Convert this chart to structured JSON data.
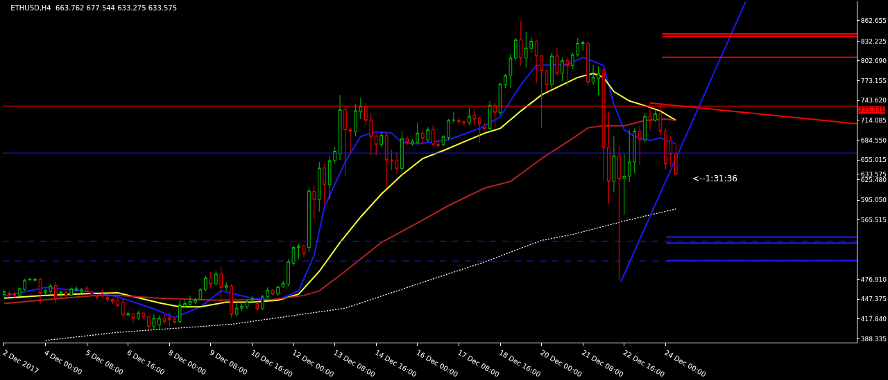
{
  "chart_data": {
    "type": "candlestick",
    "title": "ETHUSD,H4  663.762 677.544 633.275 633.575",
    "x": [
      "2017-12-02T16:00",
      "2017-12-02T20:00",
      "2017-12-03T00:00",
      "2017-12-03T04:00",
      "2017-12-03T08:00",
      "2017-12-03T12:00",
      "2017-12-03T16:00",
      "2017-12-03T20:00",
      "2017-12-04T00:00",
      "2017-12-04T04:00",
      "2017-12-04T08:00",
      "2017-12-04T12:00",
      "2017-12-04T16:00",
      "2017-12-04T20:00",
      "2017-12-05T00:00",
      "2017-12-05T04:00",
      "2017-12-05T08:00",
      "2017-12-05T12:00",
      "2017-12-05T16:00",
      "2017-12-05T20:00",
      "2017-12-06T00:00",
      "2017-12-06T04:00",
      "2017-12-06T08:00",
      "2017-12-06T12:00",
      "2017-12-06T16:00",
      "2017-12-06T20:00",
      "2017-12-07T00:00",
      "2017-12-07T04:00",
      "2017-12-07T08:00",
      "2017-12-07T12:00",
      "2017-12-07T16:00",
      "2017-12-07T20:00",
      "2017-12-08T00:00",
      "2017-12-08T04:00",
      "2017-12-08T08:00",
      "2017-12-08T12:00",
      "2017-12-08T16:00",
      "2017-12-08T20:00",
      "2017-12-09T00:00",
      "2017-12-09T04:00",
      "2017-12-09T08:00",
      "2017-12-09T12:00",
      "2017-12-09T16:00",
      "2017-12-09T20:00",
      "2017-12-10T00:00",
      "2017-12-10T04:00",
      "2017-12-10T08:00",
      "2017-12-10T12:00",
      "2017-12-10T16:00",
      "2017-12-10T20:00",
      "2017-12-11T00:00",
      "2017-12-11T04:00",
      "2017-12-11T08:00",
      "2017-12-11T12:00",
      "2017-12-11T16:00",
      "2017-12-11T20:00",
      "2017-12-12T00:00",
      "2017-12-12T04:00",
      "2017-12-12T08:00",
      "2017-12-12T12:00",
      "2017-12-12T16:00",
      "2017-12-12T20:00",
      "2017-12-13T00:00",
      "2017-12-13T04:00",
      "2017-12-13T08:00",
      "2017-12-13T12:00",
      "2017-12-13T16:00",
      "2017-12-13T20:00",
      "2017-12-14T00:00",
      "2017-12-14T04:00",
      "2017-12-14T08:00",
      "2017-12-14T12:00",
      "2017-12-14T16:00",
      "2017-12-14T20:00",
      "2017-12-15T00:00",
      "2017-12-15T04:00",
      "2017-12-15T08:00",
      "2017-12-15T12:00",
      "2017-12-15T16:00",
      "2017-12-15T20:00",
      "2017-12-16T00:00",
      "2017-12-16T04:00",
      "2017-12-16T08:00",
      "2017-12-16T12:00",
      "2017-12-16T16:00",
      "2017-12-16T20:00",
      "2017-12-17T00:00",
      "2017-12-17T04:00",
      "2017-12-17T08:00",
      "2017-12-17T12:00",
      "2017-12-17T16:00",
      "2017-12-17T20:00",
      "2017-12-18T00:00",
      "2017-12-18T04:00",
      "2017-12-18T08:00",
      "2017-12-18T12:00",
      "2017-12-18T16:00",
      "2017-12-18T20:00",
      "2017-12-19T00:00",
      "2017-12-19T04:00",
      "2017-12-19T08:00",
      "2017-12-19T12:00",
      "2017-12-19T16:00",
      "2017-12-19T20:00",
      "2017-12-20T00:00",
      "2017-12-20T04:00",
      "2017-12-20T08:00",
      "2017-12-20T12:00",
      "2017-12-20T16:00",
      "2017-12-20T20:00",
      "2017-12-21T00:00",
      "2017-12-21T04:00",
      "2017-12-21T08:00",
      "2017-12-21T12:00",
      "2017-12-21T16:00",
      "2017-12-21T20:00",
      "2017-12-22T00:00",
      "2017-12-22T04:00",
      "2017-12-22T08:00",
      "2017-12-22T12:00",
      "2017-12-22T16:00",
      "2017-12-22T20:00",
      "2017-12-23T00:00",
      "2017-12-23T04:00",
      "2017-12-23T08:00",
      "2017-12-23T12:00",
      "2017-12-23T16:00",
      "2017-12-23T20:00",
      "2017-12-24T00:00",
      "2017-12-24T04:00",
      "2017-12-24T08:00"
    ],
    "ohlc": [
      [
        454.5,
        461.2,
        451.6,
        458.3
      ],
      [
        456.4,
        460.3,
        452.6,
        454.5
      ],
      [
        455.4,
        459,
        449,
        453.5
      ],
      [
        453.5,
        465,
        452,
        463.2
      ],
      [
        462,
        478,
        460,
        475.6
      ],
      [
        476,
        480,
        475,
        477
      ],
      [
        475.5,
        479,
        474,
        477.5
      ],
      [
        477.5,
        479.4,
        439.2,
        456.4
      ],
      [
        457.4,
        462,
        455,
        460.3
      ],
      [
        458.3,
        470,
        456,
        467
      ],
      [
        468,
        473,
        443,
        448
      ],
      [
        456,
        460,
        450,
        458.3
      ],
      [
        457.4,
        460,
        450,
        452.6
      ],
      [
        453.5,
        465,
        452,
        463
      ],
      [
        461,
        467,
        459,
        463
      ],
      [
        458,
        464,
        456,
        462
      ],
      [
        464,
        467,
        456,
        459
      ],
      [
        458,
        460,
        452,
        455
      ],
      [
        453,
        455,
        446,
        450
      ],
      [
        455,
        461,
        450,
        452
      ],
      [
        450.5,
        453,
        443,
        447
      ],
      [
        447,
        449,
        440,
        444
      ],
      [
        446,
        449,
        436,
        438
      ],
      [
        443,
        448,
        421,
        424
      ],
      [
        424,
        430,
        422,
        426
      ],
      [
        426,
        427,
        412,
        419
      ],
      [
        419,
        430,
        417,
        427
      ],
      [
        427,
        429,
        418,
        421
      ],
      [
        421,
        423,
        403,
        406.5
      ],
      [
        406.5,
        425,
        403,
        419
      ],
      [
        409,
        423,
        402,
        419
      ],
      [
        419,
        425,
        410,
        414
      ],
      [
        420,
        427,
        406,
        417
      ],
      [
        417,
        420,
        411,
        413
      ],
      [
        414,
        446,
        412,
        439
      ],
      [
        437,
        447,
        435,
        441
      ],
      [
        440,
        452,
        438,
        444
      ],
      [
        443,
        449,
        440,
        446
      ],
      [
        447,
        464,
        446,
        462
      ],
      [
        462,
        482,
        459,
        479
      ],
      [
        479,
        488,
        465,
        470
      ],
      [
        470,
        490,
        468,
        485
      ],
      [
        485,
        495.7,
        441,
        465
      ],
      [
        465,
        473,
        460,
        468
      ],
      [
        467,
        470,
        420,
        425
      ],
      [
        425,
        441,
        422,
        434
      ],
      [
        434,
        443,
        430,
        437
      ],
      [
        436,
        447,
        433,
        444
      ],
      [
        446,
        452,
        443,
        448
      ],
      [
        441,
        446,
        430,
        433
      ],
      [
        433,
        454,
        431,
        451
      ],
      [
        451,
        465,
        448,
        461
      ],
      [
        461,
        463,
        452,
        455
      ],
      [
        455,
        467,
        452,
        466
      ],
      [
        466,
        475,
        464,
        471
      ],
      [
        470,
        507,
        467,
        503.4
      ],
      [
        501,
        527,
        497,
        524.5
      ],
      [
        524.5,
        530,
        508,
        527
      ],
      [
        527,
        529,
        510,
        515
      ],
      [
        524.5,
        614,
        518,
        608.8
      ],
      [
        608,
        617,
        567.6,
        596
      ],
      [
        596,
        652,
        578,
        643
      ],
      [
        643,
        649,
        590,
        618
      ],
      [
        618,
        661,
        596,
        654
      ],
      [
        654,
        675,
        650,
        668
      ],
      [
        664,
        752,
        655,
        730
      ],
      [
        730,
        735,
        630,
        700
      ],
      [
        700,
        703,
        664,
        698
      ],
      [
        697,
        738,
        690,
        728.5
      ],
      [
        727,
        747.7,
        716,
        735
      ],
      [
        735,
        740,
        706,
        714
      ],
      [
        714,
        725,
        661.4,
        690
      ],
      [
        690,
        694,
        662,
        678
      ],
      [
        678,
        697,
        675,
        692
      ],
      [
        692,
        697,
        613,
        655
      ],
      [
        655,
        670,
        640,
        654
      ],
      [
        654,
        666,
        634,
        642
      ],
      [
        642,
        698,
        638,
        687
      ],
      [
        687,
        690,
        677,
        681
      ],
      [
        679,
        686,
        676,
        683
      ],
      [
        681,
        711,
        679,
        695
      ],
      [
        695,
        698,
        678,
        687
      ],
      [
        685,
        704,
        681,
        700
      ],
      [
        700,
        707,
        676,
        678
      ],
      [
        678,
        686,
        673,
        676.5
      ],
      [
        678,
        692,
        675,
        690
      ],
      [
        688.6,
        716,
        685,
        714
      ],
      [
        714,
        727,
        710,
        714.6
      ],
      [
        714,
        718,
        708,
        712
      ],
      [
        712,
        714,
        706,
        710
      ],
      [
        711,
        733,
        707,
        720
      ],
      [
        722,
        731,
        706,
        716
      ],
      [
        717,
        719,
        680.6,
        709
      ],
      [
        707,
        710,
        700,
        702
      ],
      [
        702,
        742.9,
        700,
        736
      ],
      [
        736,
        740,
        704,
        726
      ],
      [
        726,
        770,
        722,
        768
      ],
      [
        767,
        783,
        762,
        781
      ],
      [
        781,
        812.8,
        762,
        807
      ],
      [
        807,
        836.8,
        804,
        834
      ],
      [
        834,
        862.7,
        795.6,
        807
      ],
      [
        807,
        846,
        793,
        822
      ],
      [
        821,
        838,
        815,
        832
      ],
      [
        832,
        834,
        769.7,
        810
      ],
      [
        810,
        812,
        702,
        788
      ],
      [
        788,
        790,
        757,
        767
      ],
      [
        767,
        815,
        762,
        810
      ],
      [
        810,
        822,
        780,
        784
      ],
      [
        784,
        808,
        772,
        803
      ],
      [
        803,
        808,
        765,
        796
      ],
      [
        796,
        815,
        790,
        812
      ],
      [
        812,
        836.8,
        809,
        829
      ],
      [
        828,
        833,
        818,
        830
      ],
      [
        829,
        832,
        766.8,
        771
      ],
      [
        771,
        797,
        767,
        778
      ],
      [
        776,
        795,
        752,
        784
      ],
      [
        789,
        790.8,
        626,
        674
      ],
      [
        674,
        727,
        589.6,
        623
      ],
      [
        623,
        690,
        606.8,
        661
      ],
      [
        661,
        677,
        476.5,
        627
      ],
      [
        627,
        665,
        573.3,
        631
      ],
      [
        631,
        699.8,
        622,
        652
      ],
      [
        652,
        702,
        635,
        698
      ],
      [
        698,
        705,
        648,
        685
      ],
      [
        685,
        725,
        680.6,
        720
      ],
      [
        720,
        738,
        700,
        714
      ],
      [
        714,
        729,
        712,
        724
      ],
      [
        724,
        738,
        692,
        698
      ],
      [
        698,
        702,
        640.4,
        649
      ],
      [
        683.5,
        690,
        645,
        663.8
      ],
      [
        663.762,
        677.544,
        633.275,
        633.575
      ]
    ],
    "series": [
      {
        "type": "line",
        "color": "#1a1aff",
        "x": [
          "2017-12-02T16:00",
          "2017-12-04T00:00",
          "2017-12-05T08:00",
          "2017-12-06T08:00",
          "2017-12-07T12:00",
          "2017-12-08T04:00",
          "2017-12-09T00:00",
          "2017-12-09T16:00",
          "2017-12-10T16:00",
          "2017-12-11T12:00",
          "2017-12-12T04:00",
          "2017-12-12T16:00",
          "2017-12-13T00:00",
          "2017-12-13T16:00",
          "2017-12-14T04:00",
          "2017-12-14T16:00",
          "2017-12-15T04:00",
          "2017-12-15T12:00",
          "2017-12-16T00:00",
          "2017-12-16T12:00",
          "2017-12-17T00:00",
          "2017-12-18T00:00",
          "2017-12-18T16:00",
          "2017-12-19T08:00",
          "2017-12-19T20:00",
          "2017-12-20T08:00",
          "2017-12-20T20:00",
          "2017-12-21T08:00",
          "2017-12-22T00:00",
          "2017-12-22T08:00",
          "2017-12-22T16:00",
          "2017-12-23T00:00",
          "2017-12-23T12:00",
          "2017-12-23T20:00",
          "2017-12-24T08:00"
        ],
        "values": [
          452,
          465,
          459,
          451,
          433,
          420,
          436,
          460,
          449,
          446,
          460,
          513,
          585,
          652,
          690,
          697,
          695,
          681,
          679,
          682,
          685,
          702,
          719,
          767,
          796,
          797,
          797,
          808,
          796,
          738,
          700,
          690,
          684,
          688,
          679
        ]
      },
      {
        "type": "line",
        "color": "#ffff33",
        "x": [
          "2017-12-02T16:00",
          "2017-12-04T00:00",
          "2017-12-05T12:00",
          "2017-12-06T08:00",
          "2017-12-07T16:00",
          "2017-12-08T08:00",
          "2017-12-09T00:00",
          "2017-12-09T20:00",
          "2017-12-10T16:00",
          "2017-12-11T12:00",
          "2017-12-12T04:00",
          "2017-12-12T20:00",
          "2017-12-13T12:00",
          "2017-12-14T04:00",
          "2017-12-14T20:00",
          "2017-12-15T12:00",
          "2017-12-16T04:00",
          "2017-12-16T20:00",
          "2017-12-17T12:00",
          "2017-12-18T04:00",
          "2017-12-18T16:00",
          "2017-12-19T08:00",
          "2017-12-20T00:00",
          "2017-12-20T16:00",
          "2017-12-21T04:00",
          "2017-12-21T16:00",
          "2017-12-22T00:00",
          "2017-12-22T08:00",
          "2017-12-22T20:00",
          "2017-12-23T08:00",
          "2017-12-23T20:00",
          "2017-12-24T08:00"
        ],
        "values": [
          449,
          453,
          456,
          457,
          442,
          436,
          436,
          443,
          443,
          446,
          455,
          489,
          532,
          570,
          604,
          633,
          657,
          669,
          682,
          695,
          702,
          728,
          752,
          767,
          778,
          784,
          778,
          757,
          743,
          736,
          728,
          714
        ]
      },
      {
        "type": "line",
        "color": "#b22222",
        "x": [
          "2017-12-02T16:00",
          "2017-12-04T08:00",
          "2017-12-05T16:00",
          "2017-12-06T08:00",
          "2017-12-07T16:00",
          "2017-12-09T12:00",
          "2017-12-11T08:00",
          "2017-12-12T08:00",
          "2017-12-12T20:00",
          "2017-12-13T16:00",
          "2017-12-14T20:00",
          "2017-12-16T00:00",
          "2017-12-17T00:00",
          "2017-12-18T04:00",
          "2017-12-19T00:00",
          "2017-12-20T00:00",
          "2017-12-21T00:00",
          "2017-12-21T12:00",
          "2017-12-22T00:00",
          "2017-12-22T16:00",
          "2017-12-23T08:00",
          "2017-12-24T00:00",
          "2017-12-24T08:00"
        ],
        "values": [
          441,
          448,
          453,
          453,
          449,
          446,
          447,
          453,
          460,
          489,
          532,
          561,
          587,
          613,
          623,
          657,
          687,
          703,
          706,
          706,
          714,
          716,
          714
        ]
      },
      {
        "type": "line",
        "color": "#ffffff",
        "line_style": "dotted",
        "x": [
          "2017-12-04T00:00",
          "2017-12-06T08:00",
          "2017-12-10T00:00",
          "2017-12-13T16:00",
          "2017-12-16T00:00",
          "2017-12-18T04:00",
          "2017-12-20T00:00",
          "2017-12-21T00:00",
          "2017-12-22T16:00",
          "2017-12-24T08:00"
        ],
        "values": [
          386,
          398,
          410,
          434,
          470,
          503,
          535,
          544,
          564,
          582
        ]
      },
      {
        "type": "line",
        "color": "#ff0000",
        "x": [
          "2017-12-23T12:00",
          "2017-12-30T04:00"
        ],
        "values": [
          740,
          709
        ]
      },
      {
        "type": "line",
        "color": "#1a1aff",
        "x": [
          "2017-12-22T13:20",
          "2017-12-26T14:00"
        ],
        "values": [
          473,
          891
        ]
      },
      {
        "type": "line",
        "color": "#ff0000",
        "x": [
          "2017-12-23T21:20",
          "2017-12-30T04:00"
        ],
        "values": [
          843,
          843
        ]
      },
      {
        "type": "line",
        "color": "#ff0000",
        "x": [
          "2017-12-23T21:20",
          "2017-12-30T04:00"
        ],
        "values": [
          839,
          839
        ]
      },
      {
        "type": "line",
        "color": "#ff0000",
        "x": [
          "2017-12-23T21:20",
          "2017-12-30T04:00"
        ],
        "values": [
          808,
          808
        ]
      },
      {
        "type": "line",
        "color": "#1a1aff",
        "x": [
          "2017-12-24T00:30",
          "2017-12-30T04:00"
        ],
        "values": [
          540,
          540
        ]
      },
      {
        "type": "line",
        "color": "#1a1aff",
        "x": [
          "2017-12-24T00:30",
          "2017-12-30T04:00"
        ],
        "values": [
          531,
          531
        ]
      },
      {
        "type": "line",
        "color": "#1a1aff",
        "x": [
          "2017-12-24T00:30",
          "2017-12-30T04:00"
        ],
        "values": [
          505,
          505
        ]
      }
    ],
    "ref_lines": [
      {
        "axis": "y",
        "value": 735.341,
        "label": "735.341",
        "color": "#ff0000"
      },
      {
        "axis": "y",
        "value": 665.3,
        "color": "#1a1aff"
      },
      {
        "axis": "y",
        "value": 534,
        "color": "#1a1aff",
        "line_style": "dashed"
      },
      {
        "axis": "y",
        "value": 504.3,
        "color": "#1a1aff",
        "line_style": "dashed"
      }
    ],
    "annotations": [
      "<--1:31:36"
    ],
    "xlim": [
      "2017-12-02T15:00",
      "2017-12-30T04:00"
    ],
    "xticks": [
      {
        "value": "2017-12-02T16:00",
        "label": "2 Dec 2017"
      },
      {
        "value": "2017-12-04T00:00",
        "label": "4 Dec 00:00"
      },
      {
        "value": "2017-12-05T08:00",
        "label": "5 Dec 08:00"
      },
      {
        "value": "2017-12-06T16:00",
        "label": "6 Dec 16:00"
      },
      {
        "value": "2017-12-08T00:00",
        "label": "8 Dec 00:00"
      },
      {
        "value": "2017-12-09T08:00",
        "label": "9 Dec 08:00"
      },
      {
        "value": "2017-12-10T16:00",
        "label": "10 Dec 16:00"
      },
      {
        "value": "2017-12-12T00:00",
        "label": "12 Dec 00:00"
      },
      {
        "value": "2017-12-13T08:00",
        "label": "13 Dec 08:00"
      },
      {
        "value": "2017-12-14T16:00",
        "label": "14 Dec 16:00"
      },
      {
        "value": "2017-12-16T00:00",
        "label": "16 Dec 00:00"
      },
      {
        "value": "2017-12-17T08:00",
        "label": "17 Dec 08:00"
      },
      {
        "value": "2017-12-18T16:00",
        "label": "18 Dec 16:00"
      },
      {
        "value": "2017-12-20T00:00",
        "label": "20 Dec 00:00"
      },
      {
        "value": "2017-12-21T08:00",
        "label": "21 Dec 08:00"
      },
      {
        "value": "2017-12-22T16:00",
        "label": "22 Dec 16:00"
      },
      {
        "value": "2017-12-24T00:00",
        "label": "24 Dec 00:00"
      }
    ],
    "ylim": [
      382.7,
      891.4
    ],
    "yticks": [
      862.655,
      832.225,
      {
        "value": 802.69,
        "label": "802.690"
      },
      773.155,
      {
        "value": 743.62,
        "label": "743.620"
      },
      714.085,
      {
        "value": 684.55,
        "label": "684.550"
      },
      655.015,
      {
        "value": 633.575,
        "label": "633.575"
      },
      {
        "value": 625.48,
        "label": "625.480"
      },
      {
        "value": 595.05,
        "label": "595.050"
      },
      565.515,
      {
        "value": 476.91,
        "label": "476.910"
      },
      447.375,
      {
        "value": 417.84,
        "label": "417.840"
      },
      388.335
    ]
  }
}
